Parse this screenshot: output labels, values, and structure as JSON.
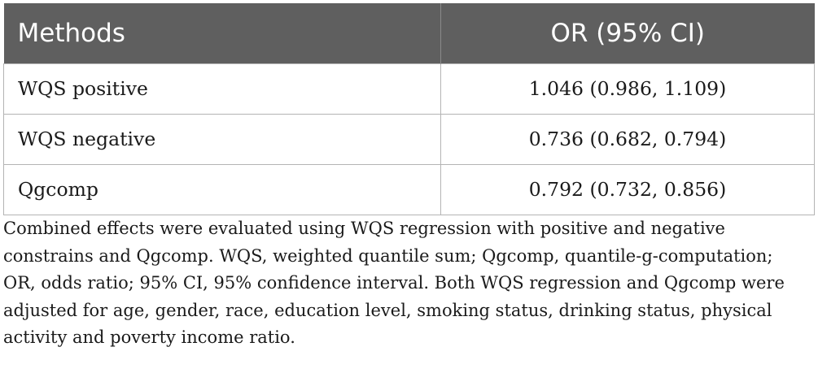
{
  "table": {
    "headers": [
      "Methods",
      "OR (95% CI)"
    ],
    "rows": [
      {
        "method": "WQS positive",
        "or_ci": "1.046 (0.986, 1.109)"
      },
      {
        "method": "WQS negative",
        "or_ci": "0.736 (0.682, 0.794)"
      },
      {
        "method": "Qgcomp",
        "or_ci": "0.792 (0.732, 0.856)"
      }
    ]
  },
  "footnote": {
    "lines": [
      "Combined effects were evaluated using WQS regression with positive and negative",
      "constrains and Qgcomp. WQS, weighted quantile sum; Qgcomp, quantile-g-computation;",
      "OR, odds ratio; 95% CI, 95% confidence interval. Both WQS regression and Qgcomp were",
      "adjusted for age, gender, race, education level, smoking status, drinking status, physical",
      "activity and poverty income ratio."
    ]
  }
}
